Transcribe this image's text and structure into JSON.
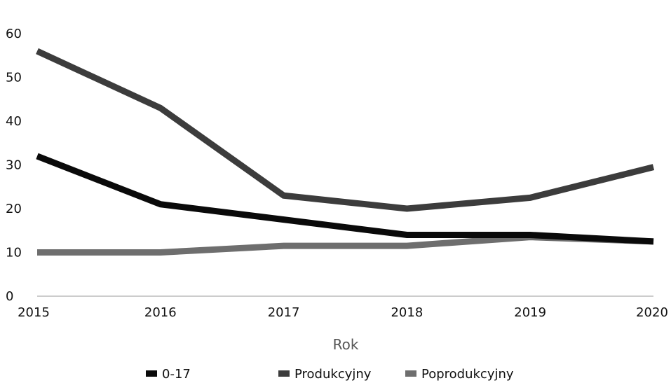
{
  "chart_data": {
    "type": "line",
    "title": "",
    "xlabel": "Rok",
    "ylabel": "",
    "x": [
      2015,
      2016,
      2017,
      2018,
      2019,
      2020
    ],
    "x_tick_labels": [
      "2015",
      "2016",
      "2017",
      "2018",
      "2019",
      "2020"
    ],
    "ylim": [
      0,
      60
    ],
    "y_ticks": [
      0,
      10,
      20,
      30,
      40,
      50,
      60
    ],
    "y_tick_labels": [
      "0",
      "10",
      "20",
      "30",
      "40",
      "50",
      "60"
    ],
    "grid": false,
    "legend_position": "bottom",
    "series": [
      {
        "name": "0-17",
        "values": [
          32,
          21,
          17.5,
          14,
          14,
          12.5
        ],
        "color": "#0a0a0a"
      },
      {
        "name": "Produkcyjny",
        "values": [
          56,
          43,
          23,
          20,
          22.5,
          29.5
        ],
        "color": "#3c3c3c"
      },
      {
        "name": "Poprodukcyjny",
        "values": [
          10,
          10,
          11.5,
          11.5,
          13.5,
          12.5
        ],
        "color": "#6e6e6e"
      }
    ]
  }
}
